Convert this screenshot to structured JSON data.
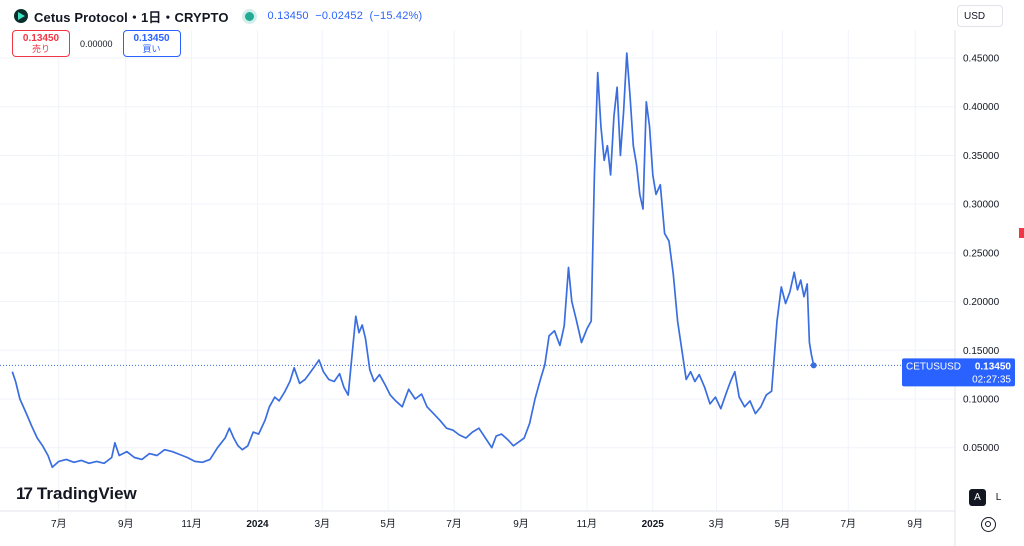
{
  "header": {
    "symbol_title": "Cetus Protocol・1日・CRYPTO",
    "last_price": "0.13450",
    "change": "−0.02452",
    "change_pct": "(−15.42%)",
    "status_color": "#22ab94"
  },
  "trade": {
    "sell_price": "0.13450",
    "sell_label": "売り",
    "spread": "0.00000",
    "buy_price": "0.13450",
    "buy_label": "買い"
  },
  "currency": "USD",
  "price_label": {
    "symbol": "CETUSUSD",
    "price": "0.13450",
    "countdown": "02:27:35",
    "color": "#2962ff"
  },
  "branding": {
    "name": "TradingView"
  },
  "scale_buttons": {
    "auto": "A",
    "log": "L"
  },
  "icons": [
    "logo-badge-icon",
    "live-dot-icon",
    "gear-icon"
  ],
  "chart_data": {
    "type": "line",
    "line_color": "#3a6ee0",
    "grid": true,
    "ylim": [
      0.0,
      0.48
    ],
    "y_ticks": [
      0.05,
      0.1,
      0.15,
      0.2,
      0.25,
      0.3,
      0.35,
      0.4,
      0.45
    ],
    "y_tick_labels": [
      "0.05000",
      "0.10000",
      "0.15000",
      "0.20000",
      "0.25000",
      "0.30000",
      "0.35000",
      "0.40000",
      "0.45000"
    ],
    "x_ticks": [
      {
        "label": "7月",
        "date": "2023-07-01",
        "bold": false
      },
      {
        "label": "9月",
        "date": "2023-09-01",
        "bold": false
      },
      {
        "label": "11月",
        "date": "2023-11-01",
        "bold": false
      },
      {
        "label": "2024",
        "date": "2024-01-01",
        "bold": true
      },
      {
        "label": "3月",
        "date": "2024-03-01",
        "bold": false
      },
      {
        "label": "5月",
        "date": "2024-05-01",
        "bold": false
      },
      {
        "label": "7月",
        "date": "2024-07-01",
        "bold": false
      },
      {
        "label": "9月",
        "date": "2024-09-01",
        "bold": false
      },
      {
        "label": "11月",
        "date": "2024-11-01",
        "bold": false
      },
      {
        "label": "2025",
        "date": "2025-01-01",
        "bold": true
      },
      {
        "label": "3月",
        "date": "2025-03-01",
        "bold": false
      },
      {
        "label": "5月",
        "date": "2025-05-01",
        "bold": false
      },
      {
        "label": "7月",
        "date": "2025-07-01",
        "bold": false
      },
      {
        "label": "9月",
        "date": "2025-09-01",
        "bold": false
      }
    ],
    "x_range": [
      "2023-05-15",
      "2025-10-06"
    ],
    "last_value": 0.1345,
    "series": [
      {
        "points": [
          [
            "2023-05-19",
            0.128
          ],
          [
            "2023-05-22",
            0.118
          ],
          [
            "2023-05-26",
            0.1
          ],
          [
            "2023-06-01",
            0.085
          ],
          [
            "2023-06-06",
            0.072
          ],
          [
            "2023-06-11",
            0.06
          ],
          [
            "2023-06-16",
            0.052
          ],
          [
            "2023-06-21",
            0.042
          ],
          [
            "2023-06-25",
            0.03
          ],
          [
            "2023-07-01",
            0.036
          ],
          [
            "2023-07-08",
            0.038
          ],
          [
            "2023-07-15",
            0.035
          ],
          [
            "2023-07-22",
            0.037
          ],
          [
            "2023-07-29",
            0.034
          ],
          [
            "2023-08-05",
            0.036
          ],
          [
            "2023-08-12",
            0.034
          ],
          [
            "2023-08-19",
            0.04
          ],
          [
            "2023-08-22",
            0.055
          ],
          [
            "2023-08-26",
            0.042
          ],
          [
            "2023-09-02",
            0.046
          ],
          [
            "2023-09-09",
            0.04
          ],
          [
            "2023-09-16",
            0.038
          ],
          [
            "2023-09-23",
            0.044
          ],
          [
            "2023-09-30",
            0.042
          ],
          [
            "2023-10-07",
            0.048
          ],
          [
            "2023-10-14",
            0.046
          ],
          [
            "2023-10-21",
            0.043
          ],
          [
            "2023-10-28",
            0.04
          ],
          [
            "2023-11-04",
            0.036
          ],
          [
            "2023-11-11",
            0.035
          ],
          [
            "2023-11-18",
            0.038
          ],
          [
            "2023-11-25",
            0.05
          ],
          [
            "2023-12-02",
            0.06
          ],
          [
            "2023-12-06",
            0.07
          ],
          [
            "2023-12-10",
            0.06
          ],
          [
            "2023-12-14",
            0.052
          ],
          [
            "2023-12-18",
            0.048
          ],
          [
            "2023-12-23",
            0.052
          ],
          [
            "2023-12-28",
            0.066
          ],
          [
            "2024-01-02",
            0.064
          ],
          [
            "2024-01-08",
            0.078
          ],
          [
            "2024-01-12",
            0.092
          ],
          [
            "2024-01-17",
            0.102
          ],
          [
            "2024-01-21",
            0.098
          ],
          [
            "2024-01-26",
            0.107
          ],
          [
            "2024-01-31",
            0.118
          ],
          [
            "2024-02-04",
            0.132
          ],
          [
            "2024-02-09",
            0.116
          ],
          [
            "2024-02-14",
            0.12
          ],
          [
            "2024-02-18",
            0.126
          ],
          [
            "2024-02-22",
            0.132
          ],
          [
            "2024-02-27",
            0.14
          ],
          [
            "2024-03-02",
            0.128
          ],
          [
            "2024-03-07",
            0.12
          ],
          [
            "2024-03-12",
            0.118
          ],
          [
            "2024-03-17",
            0.126
          ],
          [
            "2024-03-21",
            0.112
          ],
          [
            "2024-03-25",
            0.104
          ],
          [
            "2024-03-29",
            0.15
          ],
          [
            "2024-04-01",
            0.185
          ],
          [
            "2024-04-04",
            0.168
          ],
          [
            "2024-04-07",
            0.176
          ],
          [
            "2024-04-10",
            0.162
          ],
          [
            "2024-04-14",
            0.13
          ],
          [
            "2024-04-18",
            0.118
          ],
          [
            "2024-04-23",
            0.125
          ],
          [
            "2024-04-28",
            0.115
          ],
          [
            "2024-05-03",
            0.104
          ],
          [
            "2024-05-08",
            0.098
          ],
          [
            "2024-05-14",
            0.092
          ],
          [
            "2024-05-20",
            0.11
          ],
          [
            "2024-05-26",
            0.1
          ],
          [
            "2024-06-01",
            0.105
          ],
          [
            "2024-06-06",
            0.092
          ],
          [
            "2024-06-12",
            0.085
          ],
          [
            "2024-06-18",
            0.078
          ],
          [
            "2024-06-24",
            0.07
          ],
          [
            "2024-06-30",
            0.068
          ],
          [
            "2024-07-06",
            0.063
          ],
          [
            "2024-07-12",
            0.06
          ],
          [
            "2024-07-18",
            0.066
          ],
          [
            "2024-07-24",
            0.07
          ],
          [
            "2024-07-30",
            0.06
          ],
          [
            "2024-08-05",
            0.05
          ],
          [
            "2024-08-09",
            0.062
          ],
          [
            "2024-08-14",
            0.064
          ],
          [
            "2024-08-20",
            0.058
          ],
          [
            "2024-08-25",
            0.052
          ],
          [
            "2024-08-30",
            0.056
          ],
          [
            "2024-09-04",
            0.06
          ],
          [
            "2024-09-09",
            0.075
          ],
          [
            "2024-09-14",
            0.1
          ],
          [
            "2024-09-19",
            0.12
          ],
          [
            "2024-09-23",
            0.135
          ],
          [
            "2024-09-27",
            0.165
          ],
          [
            "2024-10-02",
            0.17
          ],
          [
            "2024-10-07",
            0.155
          ],
          [
            "2024-10-11",
            0.175
          ],
          [
            "2024-10-15",
            0.235
          ],
          [
            "2024-10-18",
            0.2
          ],
          [
            "2024-10-22",
            0.182
          ],
          [
            "2024-10-27",
            0.158
          ],
          [
            "2024-11-01",
            0.172
          ],
          [
            "2024-11-05",
            0.18
          ],
          [
            "2024-11-08",
            0.33
          ],
          [
            "2024-11-11",
            0.435
          ],
          [
            "2024-11-14",
            0.38
          ],
          [
            "2024-11-17",
            0.345
          ],
          [
            "2024-11-20",
            0.36
          ],
          [
            "2024-11-23",
            0.33
          ],
          [
            "2024-11-26",
            0.39
          ],
          [
            "2024-11-29",
            0.42
          ],
          [
            "2024-12-02",
            0.35
          ],
          [
            "2024-12-05",
            0.395
          ],
          [
            "2024-12-08",
            0.455
          ],
          [
            "2024-12-11",
            0.41
          ],
          [
            "2024-12-14",
            0.36
          ],
          [
            "2024-12-17",
            0.34
          ],
          [
            "2024-12-20",
            0.31
          ],
          [
            "2024-12-23",
            0.295
          ],
          [
            "2024-12-26",
            0.405
          ],
          [
            "2024-12-29",
            0.38
          ],
          [
            "2025-01-01",
            0.33
          ],
          [
            "2025-01-04",
            0.31
          ],
          [
            "2025-01-08",
            0.32
          ],
          [
            "2025-01-12",
            0.27
          ],
          [
            "2025-01-16",
            0.262
          ],
          [
            "2025-01-20",
            0.228
          ],
          [
            "2025-01-24",
            0.18
          ],
          [
            "2025-01-28",
            0.15
          ],
          [
            "2025-02-01",
            0.12
          ],
          [
            "2025-02-05",
            0.128
          ],
          [
            "2025-02-09",
            0.118
          ],
          [
            "2025-02-13",
            0.125
          ],
          [
            "2025-02-18",
            0.112
          ],
          [
            "2025-02-23",
            0.095
          ],
          [
            "2025-02-28",
            0.102
          ],
          [
            "2025-03-05",
            0.09
          ],
          [
            "2025-03-10",
            0.106
          ],
          [
            "2025-03-14",
            0.118
          ],
          [
            "2025-03-18",
            0.128
          ],
          [
            "2025-03-22",
            0.102
          ],
          [
            "2025-03-27",
            0.092
          ],
          [
            "2025-04-01",
            0.098
          ],
          [
            "2025-04-06",
            0.085
          ],
          [
            "2025-04-11",
            0.092
          ],
          [
            "2025-04-16",
            0.104
          ],
          [
            "2025-04-21",
            0.108
          ],
          [
            "2025-04-26",
            0.18
          ],
          [
            "2025-04-30",
            0.215
          ],
          [
            "2025-05-04",
            0.198
          ],
          [
            "2025-05-08",
            0.21
          ],
          [
            "2025-05-12",
            0.23
          ],
          [
            "2025-05-15",
            0.212
          ],
          [
            "2025-05-18",
            0.222
          ],
          [
            "2025-05-21",
            0.205
          ],
          [
            "2025-05-24",
            0.218
          ],
          [
            "2025-05-26",
            0.158
          ],
          [
            "2025-05-28",
            0.145
          ],
          [
            "2025-05-30",
            0.1345
          ]
        ]
      }
    ]
  }
}
